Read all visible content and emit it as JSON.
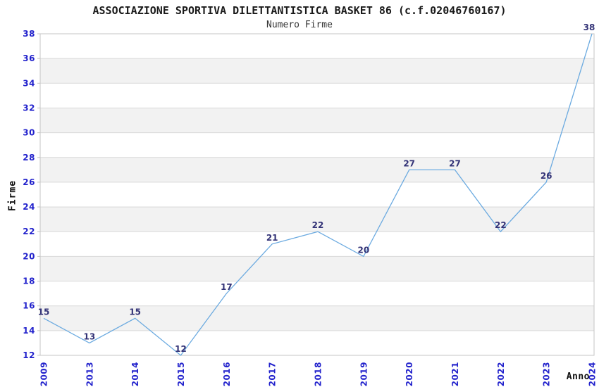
{
  "chart_data": {
    "type": "line",
    "title": "ASSOCIAZIONE SPORTIVA DILETTANTISTICA BASKET 86 (c.f.02046760167)",
    "subtitle": "Numero Firme",
    "xlabel": "Anno",
    "ylabel": "Firme",
    "categories": [
      "2009",
      "2013",
      "2014",
      "2015",
      "2016",
      "2017",
      "2018",
      "2019",
      "2020",
      "2021",
      "2022",
      "2023",
      "2024"
    ],
    "values": [
      15,
      13,
      15,
      12,
      17,
      21,
      22,
      20,
      27,
      27,
      22,
      26,
      38
    ],
    "ylim": [
      12,
      38
    ],
    "ytick_step": 2,
    "grid": true,
    "legend": "none",
    "bands": "alternating horizontal, white and light gray, 2 units each, white at top",
    "colors": {
      "line": "#6baae0",
      "tick_label": "#2222cc",
      "data_label": "#333377",
      "band": "#f2f2f2",
      "grid": "#d9d9d9",
      "border": "#c4c4c4",
      "title": "#1a1a1a"
    }
  }
}
